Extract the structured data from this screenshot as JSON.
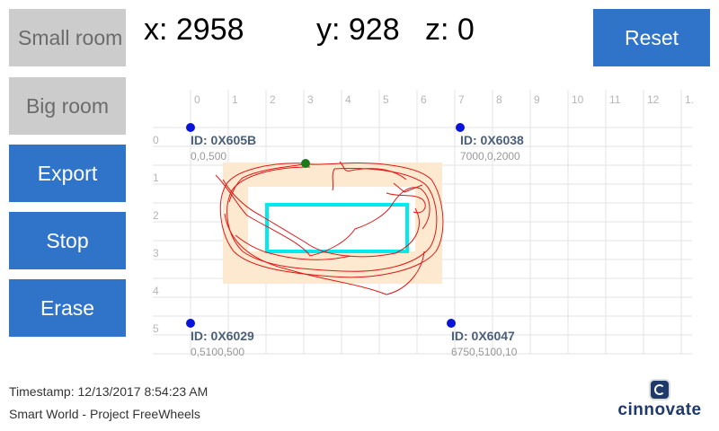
{
  "buttons": {
    "small_room": "Small room",
    "big_room": "Big room",
    "export": "Export",
    "stop": "Stop",
    "erase": "Erase",
    "reset": "Reset"
  },
  "readout": {
    "x": "x: 2958",
    "y": "y: 928",
    "z": "z: 0"
  },
  "grid": {
    "x_ticks": [
      "0",
      "1",
      "2",
      "3",
      "4",
      "5",
      "6",
      "7",
      "8",
      "9",
      "10",
      "11",
      "12",
      "1."
    ],
    "y_ticks": [
      "0",
      "1",
      "2",
      "3",
      "4",
      "5"
    ]
  },
  "anchors": [
    {
      "id": "ID: 0X605B",
      "coords": "0,0,500"
    },
    {
      "id": "ID: 0X6038",
      "coords": "7000,0,2000"
    },
    {
      "id": "ID: 0X6029",
      "coords": "0,5100,500"
    },
    {
      "id": "ID: 0X6047",
      "coords": "6750,5100,10"
    }
  ],
  "colors": {
    "anchor": "#0a14d8",
    "tag": "#1a7a1a",
    "path": "#e01818",
    "zone_outer": "#fde9cf",
    "zone_inner": "#00eaf0"
  },
  "footer": {
    "timestamp": "Timestamp: 12/13/2017 8:54:23 AM",
    "project": "Smart World - Project FreeWheels",
    "logo": "cinnovate"
  }
}
